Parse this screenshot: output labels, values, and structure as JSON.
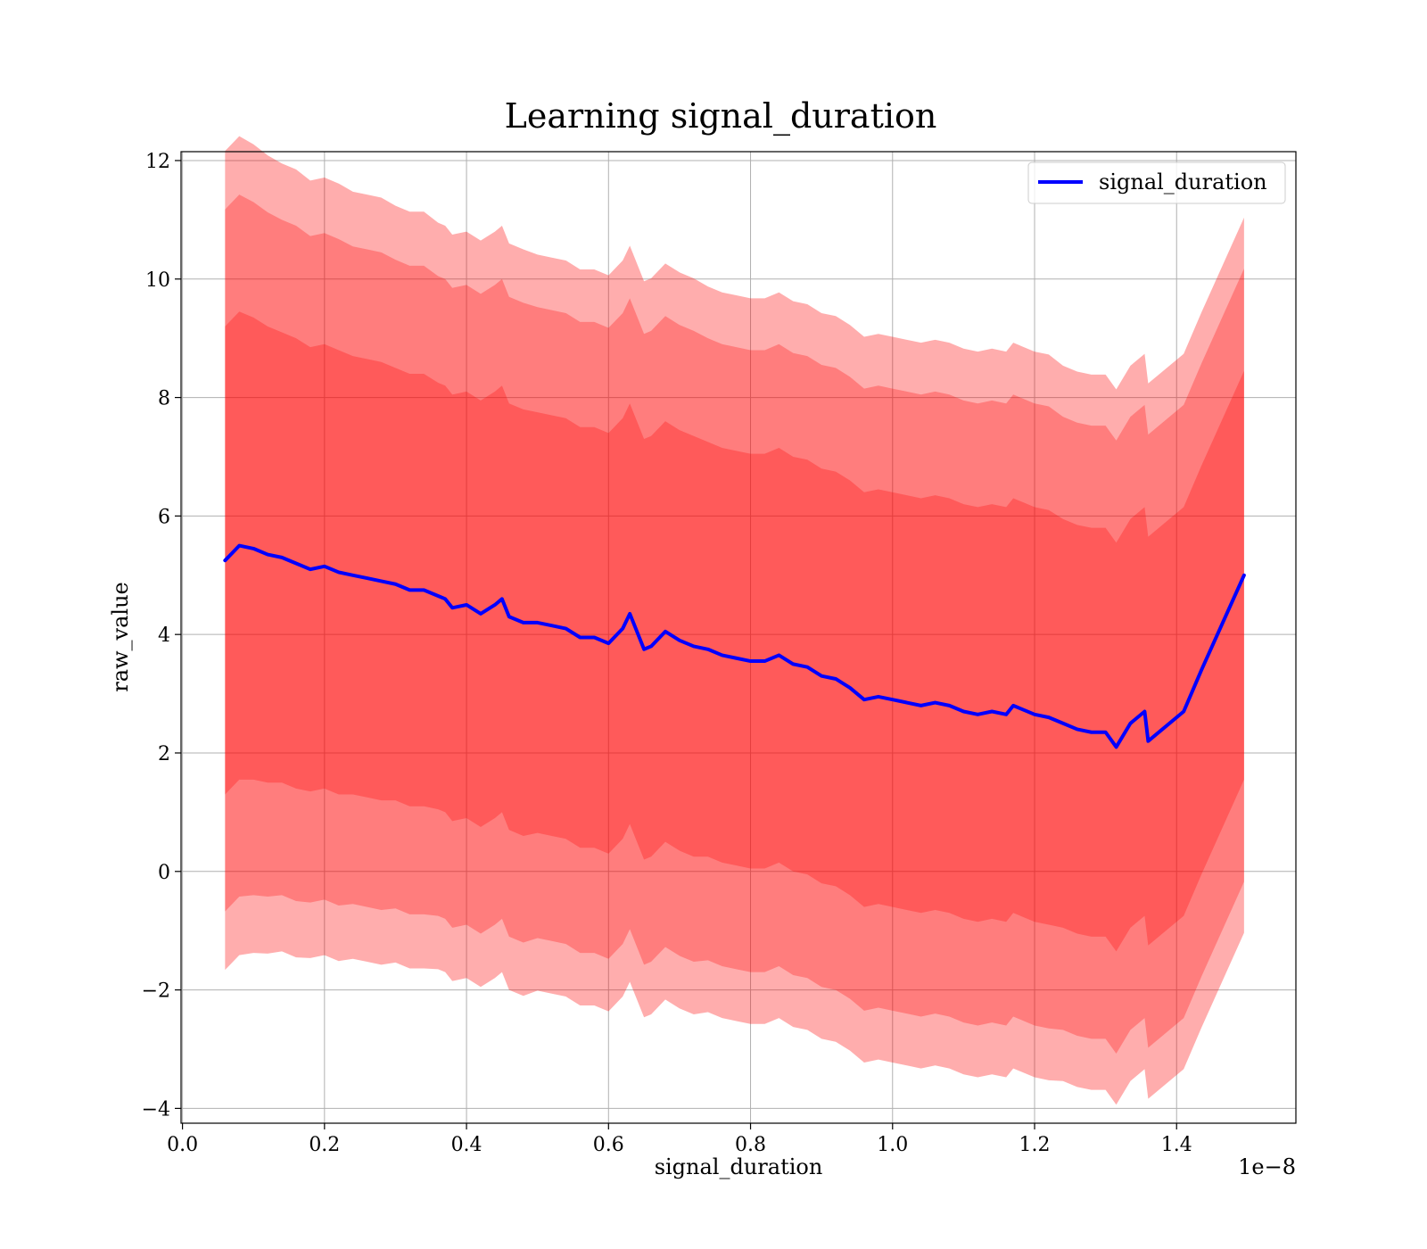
{
  "chart_data": {
    "type": "line",
    "title": "Learning signal_duration",
    "xlabel": "signal_duration",
    "ylabel": "raw_value",
    "x_offset_label": "1e−8",
    "xlim": [
      -2e-11,
      1.568e-08
    ],
    "ylim": [
      -4.25,
      12.15
    ],
    "x_ticks": [
      0.0,
      0.2,
      0.4,
      0.6,
      0.8,
      1.0,
      1.2,
      1.4
    ],
    "x_tick_labels": [
      "0.0",
      "0.2",
      "0.4",
      "0.6",
      "0.8",
      "1.0",
      "1.2",
      "1.4"
    ],
    "y_ticks": [
      -4,
      -2,
      0,
      2,
      4,
      6,
      8,
      10,
      12
    ],
    "y_tick_labels": [
      "−4",
      "−2",
      "0",
      "2",
      "4",
      "6",
      "8",
      "10",
      "12"
    ],
    "grid": true,
    "legend_position": "top-right",
    "colors": {
      "line": "#0000ff",
      "band": "#ff0000",
      "grid": "#b0b0b0"
    },
    "series": [
      {
        "name": "signal_duration",
        "x": [
          0.06,
          0.08,
          0.1,
          0.12,
          0.14,
          0.16,
          0.18,
          0.2,
          0.22,
          0.24,
          0.26,
          0.28,
          0.3,
          0.32,
          0.34,
          0.36,
          0.37,
          0.38,
          0.4,
          0.42,
          0.44,
          0.45,
          0.46,
          0.48,
          0.5,
          0.52,
          0.54,
          0.56,
          0.58,
          0.6,
          0.62,
          0.63,
          0.65,
          0.66,
          0.68,
          0.7,
          0.72,
          0.74,
          0.76,
          0.78,
          0.8,
          0.82,
          0.84,
          0.86,
          0.88,
          0.9,
          0.92,
          0.94,
          0.96,
          0.98,
          1.0,
          1.02,
          1.04,
          1.06,
          1.08,
          1.1,
          1.12,
          1.14,
          1.16,
          1.17,
          1.18,
          1.2,
          1.22,
          1.24,
          1.26,
          1.28,
          1.3,
          1.315,
          1.335,
          1.355,
          1.36,
          1.41,
          1.435,
          1.495
        ],
        "y": [
          5.25,
          5.5,
          5.45,
          5.35,
          5.3,
          5.2,
          5.1,
          5.15,
          5.05,
          5.0,
          4.95,
          4.9,
          4.85,
          4.75,
          4.75,
          4.65,
          4.6,
          4.45,
          4.5,
          4.35,
          4.5,
          4.6,
          4.3,
          4.2,
          4.2,
          4.15,
          4.1,
          3.95,
          3.95,
          3.85,
          4.1,
          4.35,
          3.75,
          3.8,
          4.05,
          3.9,
          3.8,
          3.75,
          3.65,
          3.6,
          3.55,
          3.55,
          3.65,
          3.5,
          3.45,
          3.3,
          3.25,
          3.1,
          2.9,
          2.95,
          2.9,
          2.85,
          2.8,
          2.85,
          2.8,
          2.7,
          2.65,
          2.7,
          2.65,
          2.8,
          2.75,
          2.65,
          2.6,
          2.5,
          2.4,
          2.35,
          2.35,
          2.1,
          2.5,
          2.7,
          2.2,
          2.7,
          3.4,
          5.0
        ],
        "bands_sigma": [
          1.0,
          1.5,
          1.75
        ],
        "band_opacity": [
          0.28,
          0.28,
          0.32
        ],
        "sigma": [
          3.95,
          3.95,
          3.9,
          3.85,
          3.8,
          3.8,
          3.75,
          3.75,
          3.75,
          3.7,
          3.7,
          3.7,
          3.65,
          3.65,
          3.65,
          3.6,
          3.6,
          3.6,
          3.6,
          3.6,
          3.6,
          3.6,
          3.6,
          3.6,
          3.55,
          3.55,
          3.55,
          3.55,
          3.55,
          3.55,
          3.55,
          3.55,
          3.55,
          3.55,
          3.55,
          3.55,
          3.55,
          3.5,
          3.5,
          3.5,
          3.5,
          3.5,
          3.5,
          3.5,
          3.5,
          3.5,
          3.5,
          3.5,
          3.5,
          3.5,
          3.5,
          3.5,
          3.5,
          3.5,
          3.5,
          3.5,
          3.5,
          3.5,
          3.5,
          3.5,
          3.5,
          3.5,
          3.5,
          3.45,
          3.45,
          3.45,
          3.45,
          3.45,
          3.45,
          3.45,
          3.45,
          3.45,
          3.45,
          3.45
        ]
      }
    ]
  }
}
